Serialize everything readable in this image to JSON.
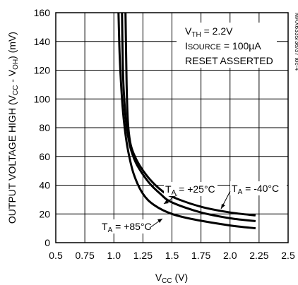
{
  "chart_data": {
    "type": "line",
    "title": "",
    "xlabel": "VCC (V)",
    "ylabel": "OUTPUT VOLTAGE HIGH (VCC - VOH) (mV)",
    "xlim": [
      0.5,
      2.5
    ],
    "ylim": [
      0,
      160
    ],
    "x_ticks": [
      "0.5",
      "0.75",
      "1.0",
      "1.25",
      "1.5",
      "1.75",
      "2.0",
      "2.25",
      "2.5"
    ],
    "y_ticks": [
      "0",
      "20",
      "40",
      "60",
      "80",
      "100",
      "120",
      "140",
      "160"
    ],
    "grid": true,
    "conditions": [
      "VTH = 2.2V",
      "ISOURCE = 100µA",
      "RESET ASSERTED"
    ],
    "figure_id": "MAX6335/36/37 toc-4",
    "series": [
      {
        "name": "TA = +85°C",
        "x": [
          1.04,
          1.05,
          1.07,
          1.09,
          1.12,
          1.17,
          1.25,
          1.35,
          1.5,
          1.7,
          2.0,
          2.22
        ],
        "y": [
          160,
          130,
          100,
          82,
          65,
          48,
          34,
          26,
          20,
          16,
          12,
          10
        ]
      },
      {
        "name": "TA = +25°C",
        "x": [
          1.07,
          1.08,
          1.1,
          1.12,
          1.15,
          1.2,
          1.3,
          1.4,
          1.5,
          1.75,
          2.0,
          2.22
        ],
        "y": [
          160,
          115,
          88,
          75,
          64,
          54,
          42,
          34,
          28,
          21,
          17,
          15
        ]
      },
      {
        "name": "TA = -40°C",
        "x": [
          1.1,
          1.11,
          1.12,
          1.14,
          1.17,
          1.22,
          1.3,
          1.4,
          1.5,
          1.75,
          2.0,
          2.22
        ],
        "y": [
          160,
          110,
          85,
          70,
          62,
          54,
          45,
          37,
          32,
          25,
          21,
          19
        ]
      }
    ]
  }
}
